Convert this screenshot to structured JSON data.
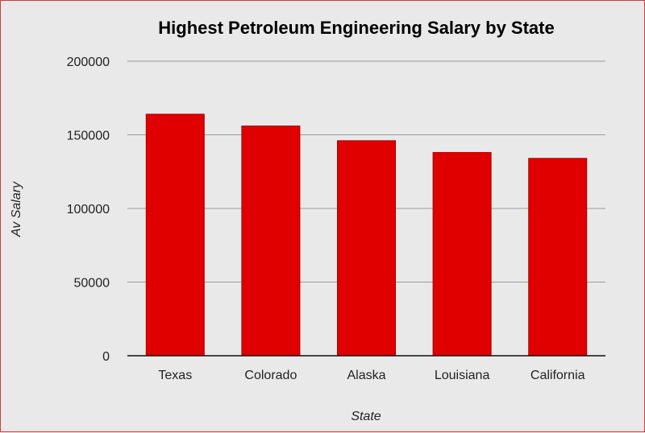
{
  "chart_data": {
    "type": "bar",
    "title": "Highest Petroleum Engineering Salary by State",
    "xlabel": "State",
    "ylabel": "Av Salary",
    "categories": [
      "Texas",
      "Colorado",
      "Alaska",
      "Louisiana",
      "California"
    ],
    "values": [
      164000,
      156000,
      146000,
      138000,
      134000
    ],
    "ylim": [
      0,
      200000
    ],
    "yticks": [
      "0",
      "50000",
      "100000",
      "150000",
      "200000"
    ],
    "grid": true,
    "legend": "none",
    "bar_color": "#e00000"
  }
}
